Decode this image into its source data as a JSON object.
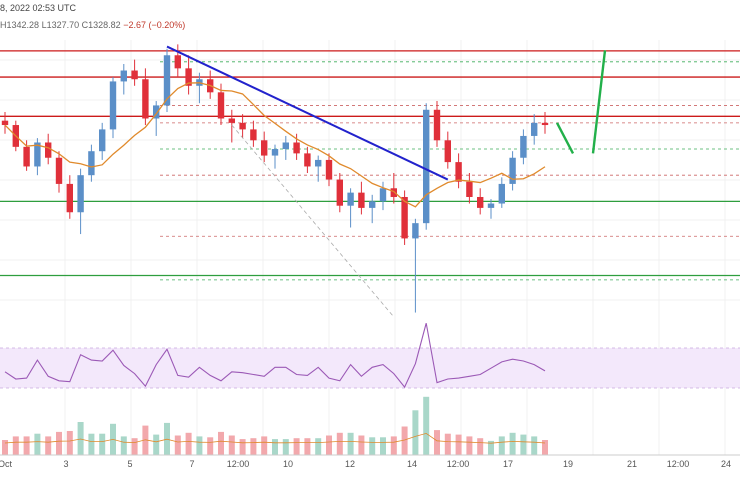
{
  "header": {
    "title_fragment": "8, 2022 02:53 UTC",
    "ohlc": {
      "high": "H1342.28",
      "low": "L1327.70",
      "close": "C1328.82",
      "change": "−2.67 (−0.20%)"
    }
  },
  "colors": {
    "up": "#5b8fc8",
    "down": "#e0303a",
    "trend": "#2222cc",
    "resistance": "#cc1a1a",
    "support": "#2e9e3e",
    "forecast": "#22b04a",
    "ma": "#e08a2c",
    "rsi": "#9b59b6"
  },
  "chart_data": {
    "type": "candlestick",
    "x_ticks": [
      "Oct",
      "3",
      "5",
      "7",
      "12:00",
      "10",
      "12",
      "14",
      "12:00",
      "17",
      "19",
      "21",
      "12:00",
      "24"
    ],
    "levels": {
      "resistance": [
        1390,
        1378,
        1360
      ],
      "support": [
        1321,
        1287
      ]
    },
    "candles": [
      [
        1358,
        1362,
        1352,
        1356
      ],
      [
        1356,
        1358,
        1344,
        1346
      ],
      [
        1346,
        1349,
        1335,
        1337
      ],
      [
        1337,
        1350,
        1333,
        1348
      ],
      [
        1348,
        1352,
        1338,
        1341
      ],
      [
        1341,
        1344,
        1325,
        1329
      ],
      [
        1329,
        1333,
        1313,
        1316
      ],
      [
        1316,
        1336,
        1306,
        1333
      ],
      [
        1333,
        1347,
        1330,
        1344
      ],
      [
        1344,
        1357,
        1340,
        1354
      ],
      [
        1354,
        1378,
        1350,
        1376
      ],
      [
        1376,
        1384,
        1370,
        1381
      ],
      [
        1381,
        1386,
        1374,
        1377
      ],
      [
        1377,
        1382,
        1356,
        1359
      ],
      [
        1359,
        1367,
        1351,
        1365
      ],
      [
        1365,
        1391,
        1362,
        1388
      ],
      [
        1388,
        1393,
        1378,
        1382
      ],
      [
        1382,
        1388,
        1370,
        1374
      ],
      [
        1374,
        1380,
        1366,
        1377
      ],
      [
        1377,
        1381,
        1368,
        1371
      ],
      [
        1371,
        1375,
        1356,
        1359
      ],
      [
        1359,
        1363,
        1348,
        1357
      ],
      [
        1357,
        1361,
        1350,
        1354
      ],
      [
        1354,
        1358,
        1346,
        1349
      ],
      [
        1349,
        1353,
        1339,
        1342
      ],
      [
        1342,
        1347,
        1336,
        1345
      ],
      [
        1345,
        1351,
        1340,
        1348
      ],
      [
        1348,
        1352,
        1340,
        1343
      ],
      [
        1343,
        1346,
        1334,
        1337
      ],
      [
        1337,
        1342,
        1330,
        1340
      ],
      [
        1340,
        1343,
        1328,
        1331
      ],
      [
        1331,
        1334,
        1316,
        1319
      ],
      [
        1319,
        1327,
        1309,
        1325
      ],
      [
        1325,
        1330,
        1315,
        1318
      ],
      [
        1318,
        1324,
        1311,
        1321
      ],
      [
        1321,
        1330,
        1317,
        1327
      ],
      [
        1327,
        1334,
        1320,
        1323
      ],
      [
        1323,
        1326,
        1301,
        1304
      ],
      [
        1304,
        1313,
        1270,
        1311
      ],
      [
        1311,
        1366,
        1308,
        1363
      ],
      [
        1363,
        1367,
        1346,
        1349
      ],
      [
        1349,
        1353,
        1336,
        1339
      ],
      [
        1339,
        1343,
        1327,
        1330
      ],
      [
        1330,
        1334,
        1320,
        1323
      ],
      [
        1323,
        1327,
        1315,
        1318
      ],
      [
        1318,
        1322,
        1313,
        1320
      ],
      [
        1320,
        1332,
        1318,
        1329
      ],
      [
        1329,
        1344,
        1326,
        1341
      ],
      [
        1341,
        1354,
        1338,
        1351
      ],
      [
        1351,
        1361,
        1347,
        1357
      ],
      [
        1357,
        1362,
        1352,
        1356
      ]
    ],
    "forecast_path": [
      [
        1357,
        0
      ],
      [
        1342,
        0
      ],
      [
        1385,
        0
      ]
    ]
  }
}
